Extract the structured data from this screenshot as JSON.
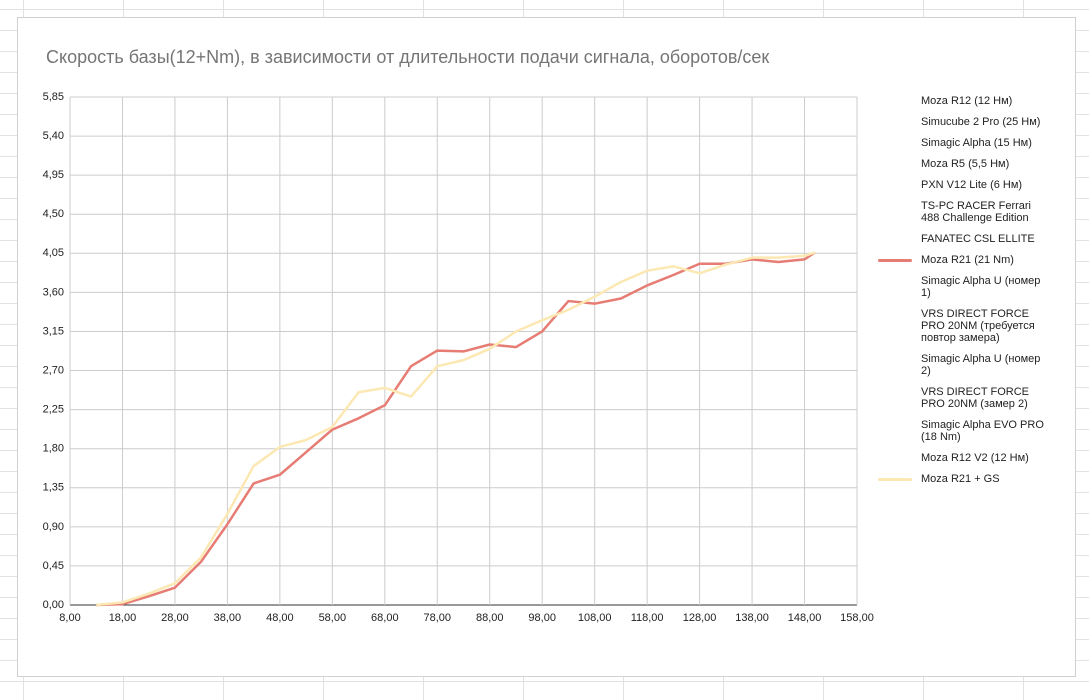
{
  "chart_data": {
    "type": "line",
    "title": "Скорость базы(12+Nm), в зависимости от длительности подачи сигнала, оборотов/сек",
    "x": [
      13,
      18,
      23,
      28,
      33,
      38,
      43,
      48,
      53,
      58,
      63,
      68,
      73,
      78,
      83,
      88,
      93,
      98,
      103,
      108,
      113,
      118,
      123,
      128,
      133,
      138,
      143,
      148,
      150
    ],
    "xlim": [
      8,
      158
    ],
    "xticks": [
      {
        "value": 8,
        "label": "8,00"
      },
      {
        "value": 18,
        "label": "18,00"
      },
      {
        "value": 28,
        "label": "28,00"
      },
      {
        "value": 38,
        "label": "38,00"
      },
      {
        "value": 48,
        "label": "48,00"
      },
      {
        "value": 58,
        "label": "58,00"
      },
      {
        "value": 68,
        "label": "68,00"
      },
      {
        "value": 78,
        "label": "78,00"
      },
      {
        "value": 88,
        "label": "88,00"
      },
      {
        "value": 98,
        "label": "98,00"
      },
      {
        "value": 108,
        "label": "108,00"
      },
      {
        "value": 118,
        "label": "118,00"
      },
      {
        "value": 128,
        "label": "128,00"
      },
      {
        "value": 138,
        "label": "138,00"
      },
      {
        "value": 148,
        "label": "148,00"
      },
      {
        "value": 158,
        "label": "158,00"
      }
    ],
    "ylim": [
      0,
      5.85
    ],
    "yticks": [
      {
        "value": 0,
        "label": "0,00"
      },
      {
        "value": 0.45,
        "label": "0,45"
      },
      {
        "value": 0.9,
        "label": "0,90"
      },
      {
        "value": 1.35,
        "label": "1,35"
      },
      {
        "value": 1.8,
        "label": "1,80"
      },
      {
        "value": 2.25,
        "label": "2,25"
      },
      {
        "value": 2.7,
        "label": "2,70"
      },
      {
        "value": 3.15,
        "label": "3,15"
      },
      {
        "value": 3.6,
        "label": "3,60"
      },
      {
        "value": 4.05,
        "label": "4,05"
      },
      {
        "value": 4.5,
        "label": "4,50"
      },
      {
        "value": 4.95,
        "label": "4,95"
      },
      {
        "value": 5.4,
        "label": "5,40"
      },
      {
        "value": 5.85,
        "label": "5,85"
      }
    ],
    "grid": true,
    "legend": "right",
    "series": [
      {
        "name": "Moza R12 (12 Нм)",
        "values": [
          null,
          null,
          null,
          null,
          null,
          null,
          null,
          null,
          null,
          null,
          null,
          null,
          null,
          null,
          null,
          null,
          null,
          null,
          null,
          null,
          null,
          null,
          null,
          null,
          null,
          null,
          null,
          null,
          null
        ]
      },
      {
        "name": "Simucube 2 Pro (25 Нм)",
        "values": [
          null,
          null,
          null,
          null,
          null,
          null,
          null,
          null,
          null,
          null,
          null,
          null,
          null,
          null,
          null,
          null,
          null,
          null,
          null,
          null,
          null,
          null,
          null,
          null,
          null,
          null,
          null,
          null,
          null
        ]
      },
      {
        "name": "Simagic Alpha (15 Нм)",
        "values": [
          null,
          null,
          null,
          null,
          null,
          null,
          null,
          null,
          null,
          null,
          null,
          null,
          null,
          null,
          null,
          null,
          null,
          null,
          null,
          null,
          null,
          null,
          null,
          null,
          null,
          null,
          null,
          null,
          null
        ]
      },
      {
        "name": "Moza R5 (5,5 Нм)",
        "values": [
          null,
          null,
          null,
          null,
          null,
          null,
          null,
          null,
          null,
          null,
          null,
          null,
          null,
          null,
          null,
          null,
          null,
          null,
          null,
          null,
          null,
          null,
          null,
          null,
          null,
          null,
          null,
          null,
          null
        ]
      },
      {
        "name": "PXN V12 Lite (6 Нм)",
        "values": [
          null,
          null,
          null,
          null,
          null,
          null,
          null,
          null,
          null,
          null,
          null,
          null,
          null,
          null,
          null,
          null,
          null,
          null,
          null,
          null,
          null,
          null,
          null,
          null,
          null,
          null,
          null,
          null,
          null
        ]
      },
      {
        "name": "TS-PC RACER Ferrari 488 Challenge Edition",
        "values": [
          null,
          null,
          null,
          null,
          null,
          null,
          null,
          null,
          null,
          null,
          null,
          null,
          null,
          null,
          null,
          null,
          null,
          null,
          null,
          null,
          null,
          null,
          null,
          null,
          null,
          null,
          null,
          null,
          null
        ]
      },
      {
        "name": "FANATEC CSL ELLITE",
        "values": [
          null,
          null,
          null,
          null,
          null,
          null,
          null,
          null,
          null,
          null,
          null,
          null,
          null,
          null,
          null,
          null,
          null,
          null,
          null,
          null,
          null,
          null,
          null,
          null,
          null,
          null,
          null,
          null,
          null
        ]
      },
      {
        "name": "Moza R21 (21 Nm)",
        "color": "#e67c73",
        "values": [
          0,
          0.01,
          0.1,
          0.2,
          0.5,
          0.93,
          1.4,
          1.5,
          1.76,
          2.02,
          2.15,
          2.3,
          2.75,
          2.93,
          2.92,
          3.0,
          2.97,
          3.15,
          3.5,
          3.47,
          3.53,
          3.68,
          3.8,
          3.93,
          3.93,
          3.98,
          3.95,
          3.98,
          4.06
        ]
      },
      {
        "name": "Simagic Alpha U (номер 1)",
        "values": [
          null,
          null,
          null,
          null,
          null,
          null,
          null,
          null,
          null,
          null,
          null,
          null,
          null,
          null,
          null,
          null,
          null,
          null,
          null,
          null,
          null,
          null,
          null,
          null,
          null,
          null,
          null,
          null,
          null
        ]
      },
      {
        "name": "VRS DIRECT FORCE PRO 20NM (требуется повтор замера)",
        "values": [
          null,
          null,
          null,
          null,
          null,
          null,
          null,
          null,
          null,
          null,
          null,
          null,
          null,
          null,
          null,
          null,
          null,
          null,
          null,
          null,
          null,
          null,
          null,
          null,
          null,
          null,
          null,
          null,
          null
        ]
      },
      {
        "name": "Simagic Alpha U (номер 2)",
        "values": [
          null,
          null,
          null,
          null,
          null,
          null,
          null,
          null,
          null,
          null,
          null,
          null,
          null,
          null,
          null,
          null,
          null,
          null,
          null,
          null,
          null,
          null,
          null,
          null,
          null,
          null,
          null,
          null,
          null
        ]
      },
      {
        "name": "VRS DIRECT FORCE PRO 20NM (замер 2)",
        "values": [
          null,
          null,
          null,
          null,
          null,
          null,
          null,
          null,
          null,
          null,
          null,
          null,
          null,
          null,
          null,
          null,
          null,
          null,
          null,
          null,
          null,
          null,
          null,
          null,
          null,
          null,
          null,
          null,
          null
        ]
      },
      {
        "name": "Simagic Alpha EVO PRO (18 Nm)",
        "values": [
          null,
          null,
          null,
          null,
          null,
          null,
          null,
          null,
          null,
          null,
          null,
          null,
          null,
          null,
          null,
          null,
          null,
          null,
          null,
          null,
          null,
          null,
          null,
          null,
          null,
          null,
          null,
          null,
          null
        ]
      },
      {
        "name": "Moza R12 V2 (12 Нм)",
        "values": [
          null,
          null,
          null,
          null,
          null,
          null,
          null,
          null,
          null,
          null,
          null,
          null,
          null,
          null,
          null,
          null,
          null,
          null,
          null,
          null,
          null,
          null,
          null,
          null,
          null,
          null,
          null,
          null,
          null
        ]
      },
      {
        "name": "Moza R21 + GS",
        "color": "#fce8b2",
        "values": [
          0,
          0.03,
          0.13,
          0.25,
          0.55,
          1.05,
          1.6,
          1.82,
          1.9,
          2.05,
          2.45,
          2.5,
          2.4,
          2.75,
          2.82,
          2.95,
          3.15,
          3.28,
          3.4,
          3.55,
          3.72,
          3.85,
          3.9,
          3.82,
          3.92,
          4.0,
          4.0,
          4.02,
          4.06
        ]
      }
    ]
  }
}
